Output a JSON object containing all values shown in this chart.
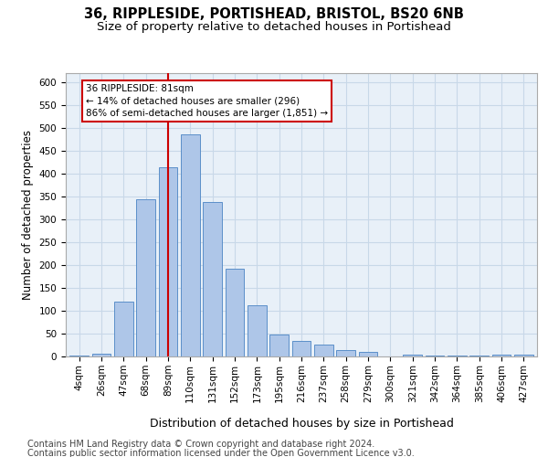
{
  "title1": "36, RIPPLESIDE, PORTISHEAD, BRISTOL, BS20 6NB",
  "title2": "Size of property relative to detached houses in Portishead",
  "xlabel": "Distribution of detached houses by size in Portishead",
  "ylabel": "Number of detached properties",
  "categories": [
    "4sqm",
    "26sqm",
    "47sqm",
    "68sqm",
    "89sqm",
    "110sqm",
    "131sqm",
    "152sqm",
    "173sqm",
    "195sqm",
    "216sqm",
    "237sqm",
    "258sqm",
    "279sqm",
    "300sqm",
    "321sqm",
    "342sqm",
    "364sqm",
    "385sqm",
    "406sqm",
    "427sqm"
  ],
  "values": [
    3,
    7,
    120,
    345,
    415,
    487,
    338,
    193,
    112,
    48,
    35,
    26,
    15,
    10,
    0,
    5,
    2,
    3,
    2,
    5,
    5
  ],
  "bar_color": "#aec6e8",
  "bar_edge_color": "#5b8fc9",
  "vline_x": 4,
  "vline_color": "#cc0000",
  "annotation_line1": "36 RIPPLESIDE: 81sqm",
  "annotation_line2": "← 14% of detached houses are smaller (296)",
  "annotation_line3": "86% of semi-detached houses are larger (1,851) →",
  "annotation_box_color": "#ffffff",
  "annotation_box_edge": "#cc0000",
  "ylim": [
    0,
    620
  ],
  "yticks": [
    0,
    50,
    100,
    150,
    200,
    250,
    300,
    350,
    400,
    450,
    500,
    550,
    600
  ],
  "footer1": "Contains HM Land Registry data © Crown copyright and database right 2024.",
  "footer2": "Contains public sector information licensed under the Open Government Licence v3.0.",
  "bg_color": "#ffffff",
  "plot_bg_color": "#e8f0f8",
  "grid_color": "#c8d8e8",
  "title1_fontsize": 10.5,
  "title2_fontsize": 9.5,
  "xlabel_fontsize": 9,
  "ylabel_fontsize": 8.5,
  "tick_fontsize": 7.5,
  "footer_fontsize": 7
}
